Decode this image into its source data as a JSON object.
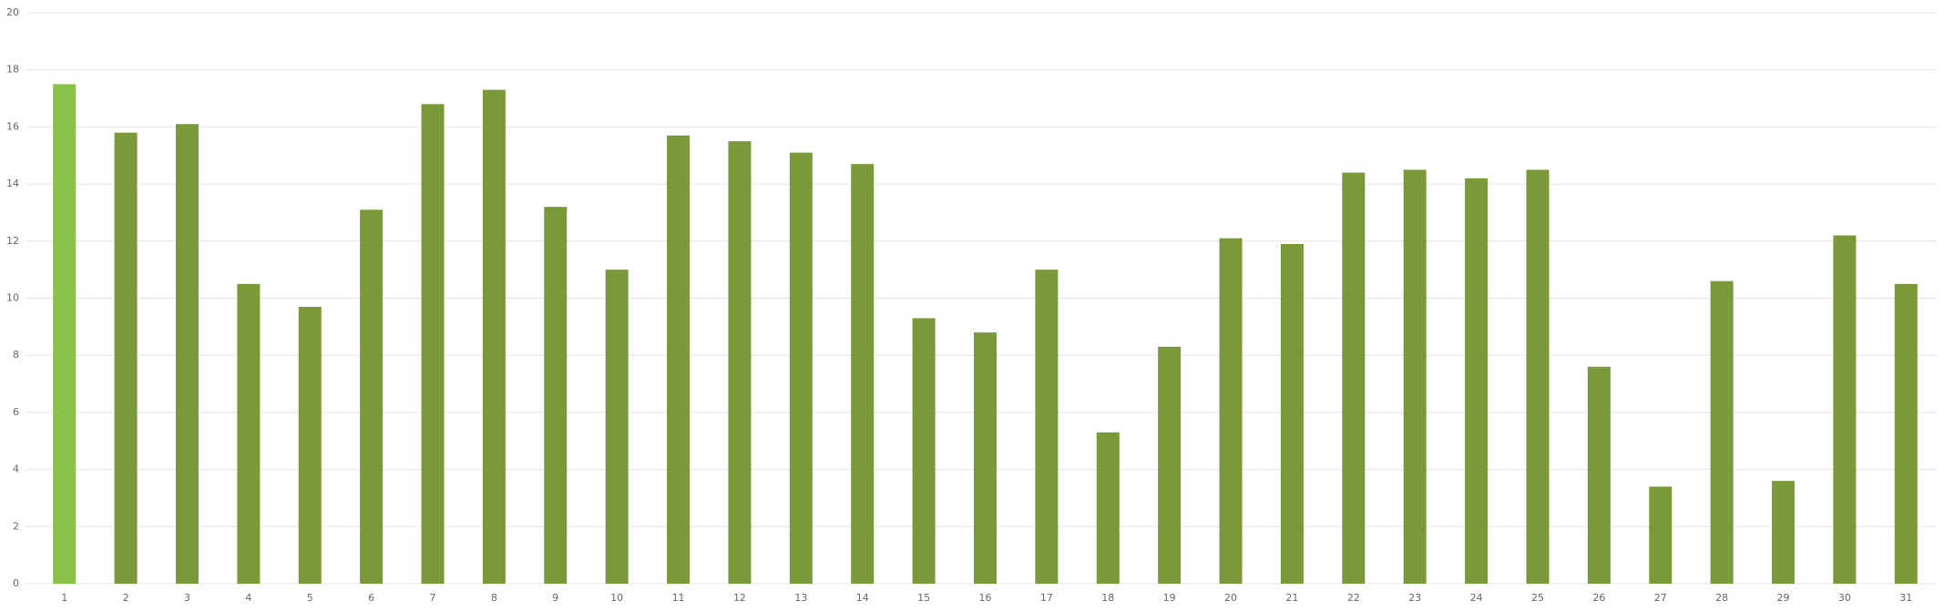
{
  "chart_data": {
    "type": "bar",
    "categories": [
      "1",
      "2",
      "3",
      "4",
      "5",
      "6",
      "7",
      "8",
      "9",
      "10",
      "11",
      "12",
      "13",
      "14",
      "15",
      "16",
      "17",
      "18",
      "19",
      "20",
      "21",
      "22",
      "23",
      "24",
      "25",
      "26",
      "27",
      "28",
      "29",
      "30",
      "31"
    ],
    "values": [
      17.5,
      15.8,
      16.1,
      10.5,
      9.7,
      13.1,
      16.8,
      17.3,
      13.2,
      11.0,
      15.7,
      15.5,
      15.1,
      14.7,
      9.3,
      8.8,
      11.0,
      5.3,
      8.3,
      12.1,
      11.9,
      14.4,
      14.5,
      14.2,
      14.5,
      7.6,
      3.4,
      10.6,
      3.6,
      12.2,
      10.5
    ],
    "colors": [
      "#8bc34a",
      "#7a9a3a",
      "#7a9a3a",
      "#7a9a3a",
      "#7a9a3a",
      "#7a9a3a",
      "#7a9a3a",
      "#7a9a3a",
      "#7a9a3a",
      "#7a9a3a",
      "#7a9a3a",
      "#7a9a3a",
      "#7a9a3a",
      "#7a9a3a",
      "#7a9a3a",
      "#7a9a3a",
      "#7a9a3a",
      "#7a9a3a",
      "#7a9a3a",
      "#7a9a3a",
      "#7a9a3a",
      "#7a9a3a",
      "#7a9a3a",
      "#7a9a3a",
      "#7a9a3a",
      "#7a9a3a",
      "#7a9a3a",
      "#7a9a3a",
      "#7a9a3a",
      "#7a9a3a",
      "#7a9a3a"
    ],
    "ylim": [
      0,
      20
    ],
    "yticks": [
      0,
      2,
      4,
      6,
      8,
      10,
      12,
      14,
      16,
      18,
      20
    ],
    "grid": true
  }
}
